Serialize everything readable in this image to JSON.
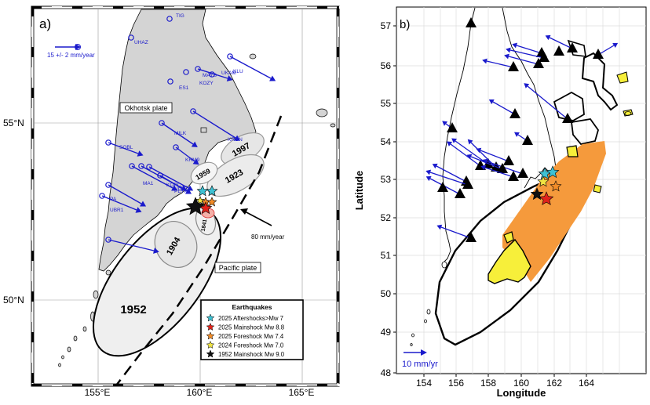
{
  "panel_a": {
    "label": "a)",
    "lon_ticks": [
      "155°E",
      "160°E",
      "165°E"
    ],
    "lat_ticks": [
      "55°N",
      "50°N"
    ],
    "plates": {
      "okhotsk": "Okhotsk plate",
      "pacific": "Pacific plate"
    },
    "scale_arrow": "15 +/- 2 mm/year",
    "plate_velocity": "80 mm/year",
    "stations": [
      "TIG",
      "UHAZ",
      "KLU",
      "MAYS",
      "UKAM",
      "KOZY",
      "ES1",
      "MILK",
      "KRON",
      "SOBL",
      "KRM9",
      "MA1",
      "KOPC",
      "PETP",
      "UBR2",
      "UBR1",
      "PA"
    ],
    "rupture_years": [
      "1997",
      "1923",
      "1959",
      "1904",
      "1841",
      "1952"
    ],
    "legend": {
      "title": "Earthquakes",
      "items": [
        {
          "label": "2025 Aftershocks>Mw 7",
          "color": "#3ec1d3"
        },
        {
          "label": "2025 Mainshock Mw 8.8",
          "color": "#e0231b"
        },
        {
          "label": "2025 Foreshock Mw 7.4",
          "color": "#f28c28"
        },
        {
          "label": "2024 Foreshock Mw 7.0",
          "color": "#f0e442"
        },
        {
          "label": "1952 Mainshock Mw 9.0",
          "color": "#111111"
        }
      ]
    }
  },
  "panel_b": {
    "label": "b)",
    "xlabel": "Longitude",
    "ylabel": "Latitude",
    "x_ticks": [
      "154",
      "156",
      "158",
      "160",
      "162",
      "164"
    ],
    "y_ticks": [
      "57",
      "56",
      "55",
      "54",
      "53",
      "52",
      "51",
      "50",
      "49",
      "48"
    ],
    "scale_arrow": "10 mm/yr"
  },
  "colors": {
    "land": "#d4d4d4",
    "vector": "#1a1acc",
    "slip_orange": "#f59a3c",
    "slip_yellow": "#f7ef3a",
    "rupture_fill": "#ececec"
  }
}
